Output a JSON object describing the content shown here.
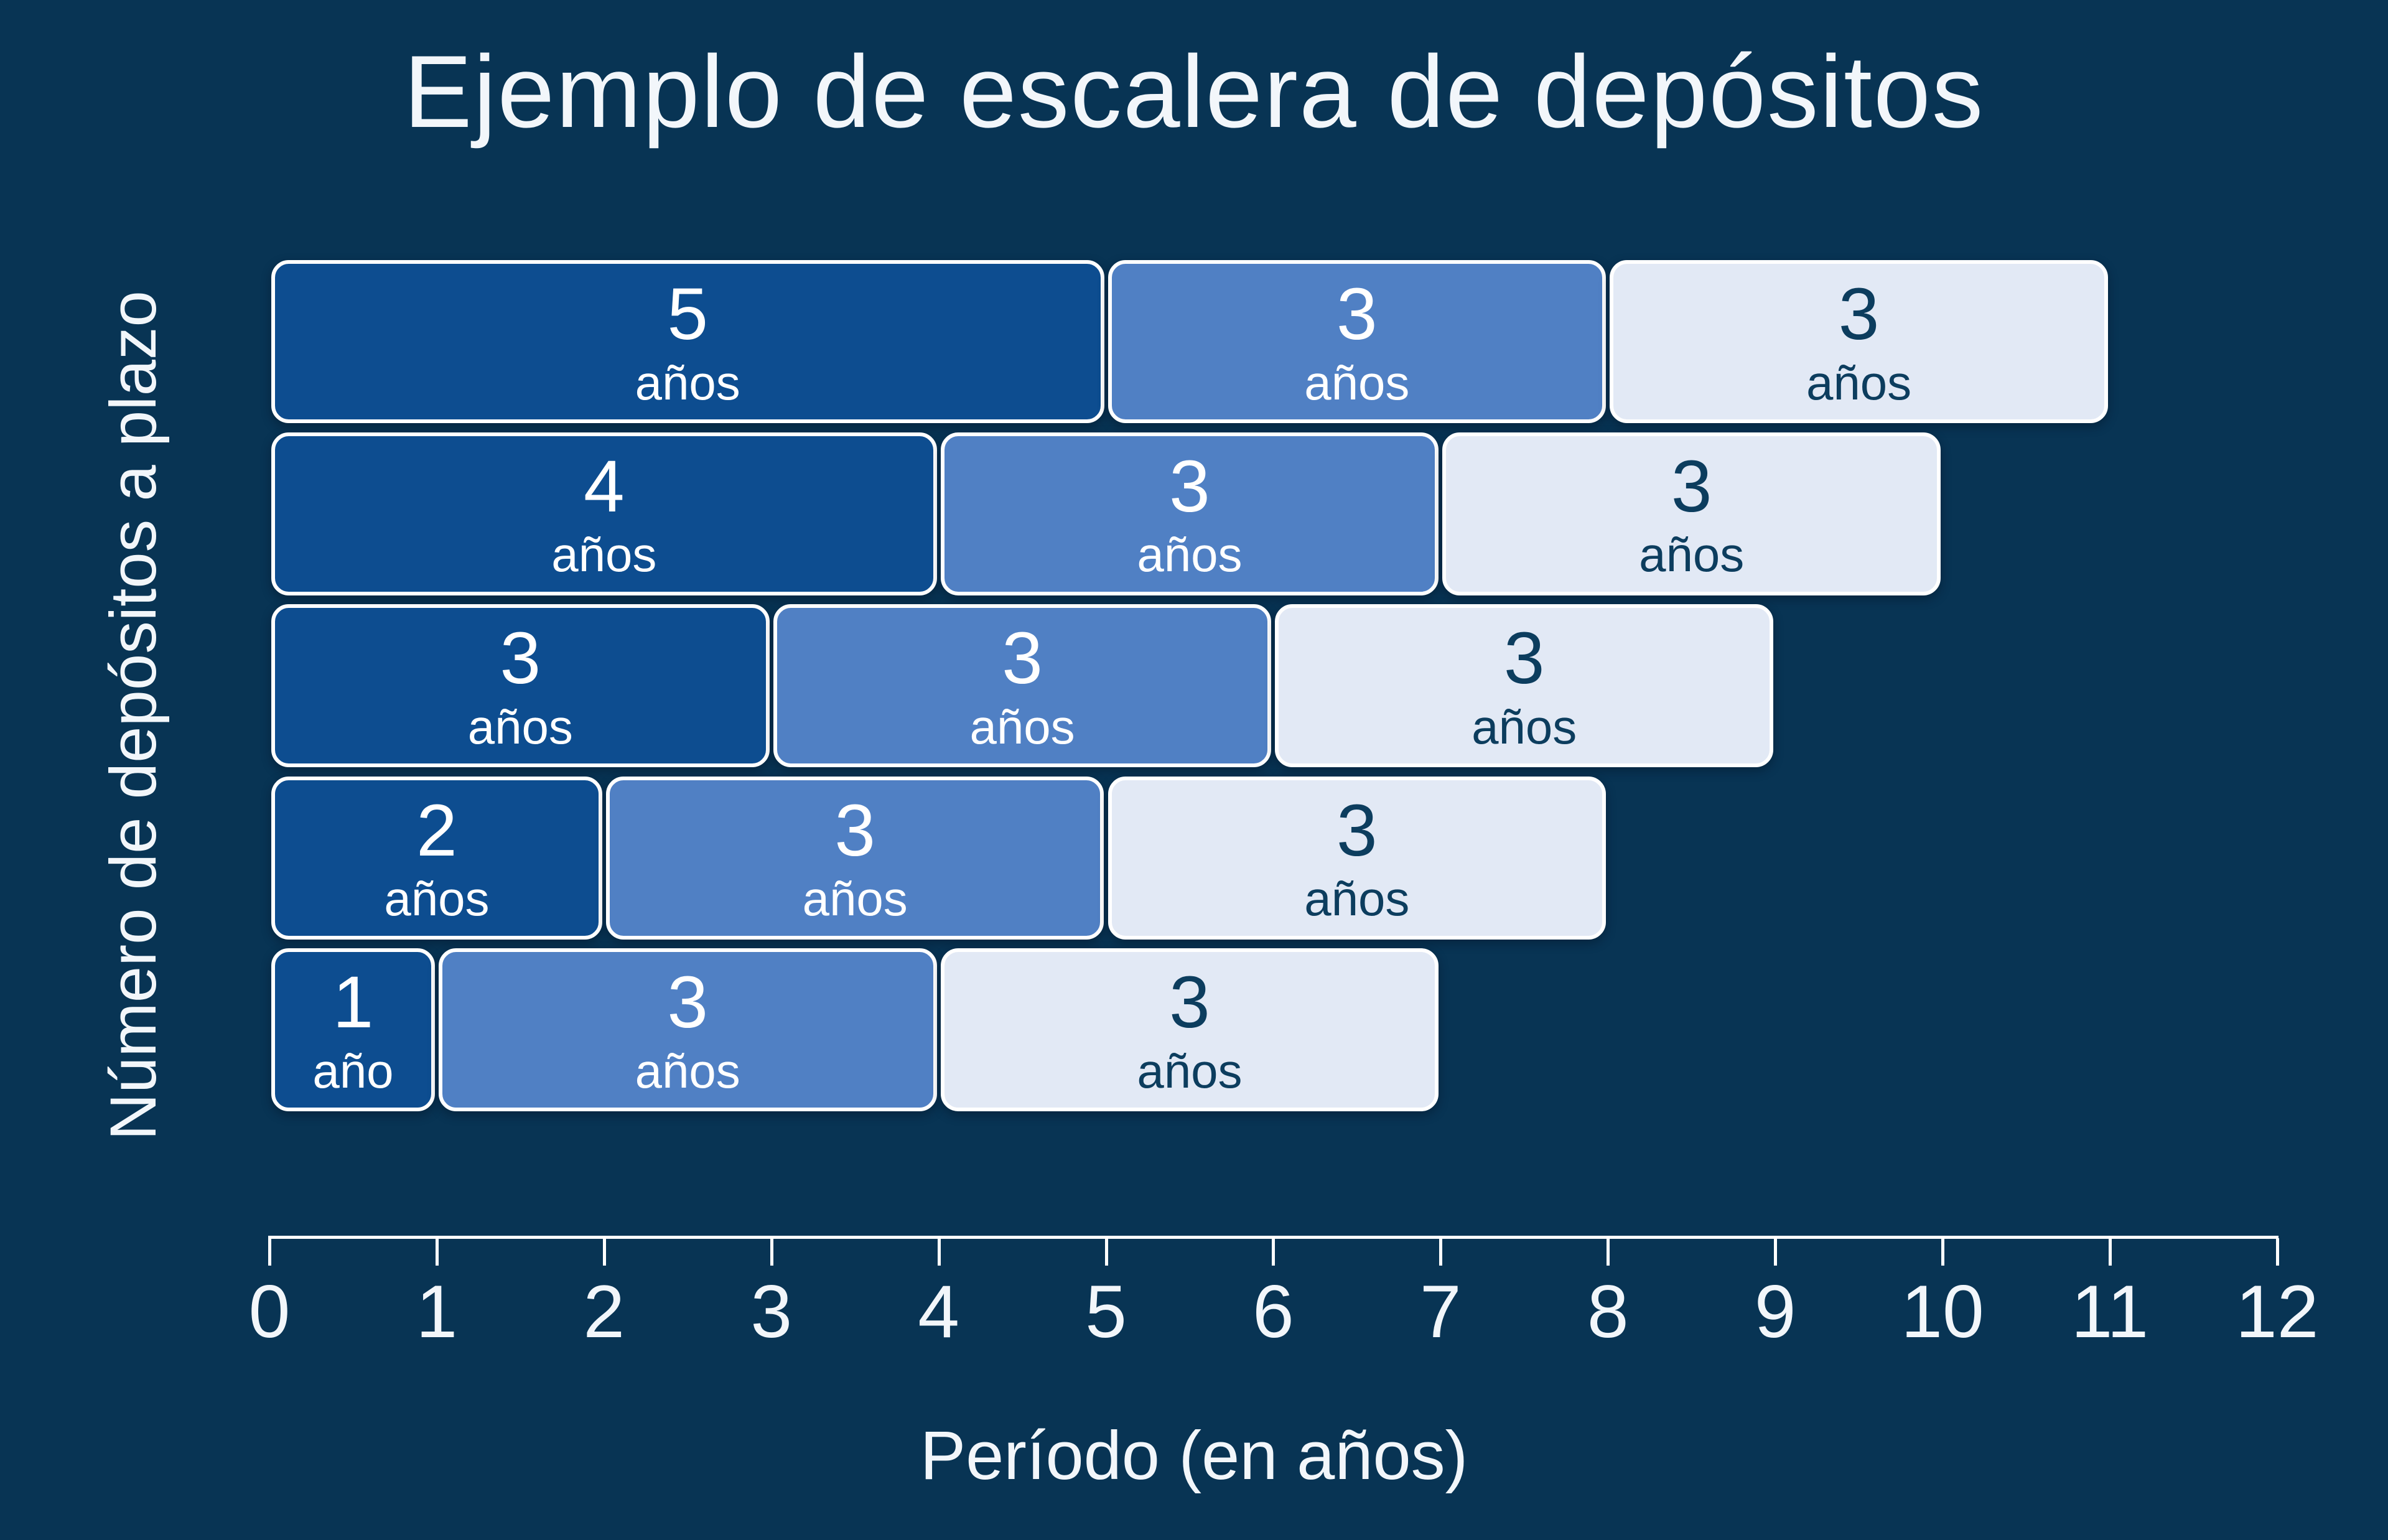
{
  "colors": {
    "background": "#083454",
    "bar_dark": "#0d4d90",
    "bar_medium": "#5080c4",
    "bar_light": "#e2e9f5",
    "text_on_dark": "#ffffff",
    "text_on_light": "#0c3d5e",
    "axis": "#ffffff"
  },
  "chart_data": {
    "type": "bar",
    "orientation": "horizontal_stacked",
    "title": "Ejemplo de escalera de depósitos",
    "xlabel": "Período (en años)",
    "ylabel": "Número de depósitos a plazo",
    "xlim": [
      0,
      12
    ],
    "x_ticks": [
      0,
      1,
      2,
      3,
      4,
      5,
      6,
      7,
      8,
      9,
      10,
      11,
      12
    ],
    "grid": false,
    "legend": false,
    "rows": [
      {
        "segments": [
          {
            "label": "5",
            "unit": "años",
            "value": 5,
            "start": 0,
            "end": 5,
            "tone": "dark"
          },
          {
            "label": "3",
            "unit": "años",
            "value": 3,
            "start": 5,
            "end": 8,
            "tone": "medium"
          },
          {
            "label": "3",
            "unit": "años",
            "value": 3,
            "start": 8,
            "end": 11,
            "tone": "light"
          }
        ]
      },
      {
        "segments": [
          {
            "label": "4",
            "unit": "años",
            "value": 4,
            "start": 0,
            "end": 4,
            "tone": "dark"
          },
          {
            "label": "3",
            "unit": "años",
            "value": 3,
            "start": 4,
            "end": 7,
            "tone": "medium"
          },
          {
            "label": "3",
            "unit": "años",
            "value": 3,
            "start": 7,
            "end": 10,
            "tone": "light"
          }
        ]
      },
      {
        "segments": [
          {
            "label": "3",
            "unit": "años",
            "value": 3,
            "start": 0,
            "end": 3,
            "tone": "dark"
          },
          {
            "label": "3",
            "unit": "años",
            "value": 3,
            "start": 3,
            "end": 6,
            "tone": "medium"
          },
          {
            "label": "3",
            "unit": "años",
            "value": 3,
            "start": 6,
            "end": 9,
            "tone": "light"
          }
        ]
      },
      {
        "segments": [
          {
            "label": "2",
            "unit": "años",
            "value": 2,
            "start": 0,
            "end": 2,
            "tone": "dark"
          },
          {
            "label": "3",
            "unit": "años",
            "value": 3,
            "start": 2,
            "end": 5,
            "tone": "medium"
          },
          {
            "label": "3",
            "unit": "años",
            "value": 3,
            "start": 5,
            "end": 8,
            "tone": "light"
          }
        ]
      },
      {
        "segments": [
          {
            "label": "1",
            "unit": "año",
            "value": 1,
            "start": 0,
            "end": 1,
            "tone": "dark"
          },
          {
            "label": "3",
            "unit": "años",
            "value": 3,
            "start": 1,
            "end": 4,
            "tone": "medium"
          },
          {
            "label": "3",
            "unit": "años",
            "value": 3,
            "start": 4,
            "end": 7,
            "tone": "light"
          }
        ]
      }
    ]
  }
}
